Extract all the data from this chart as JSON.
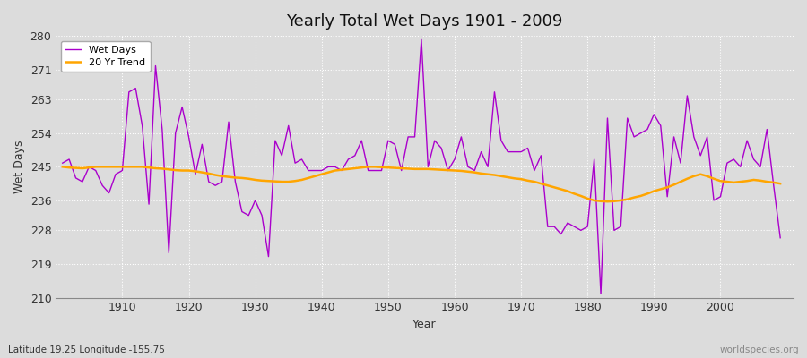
{
  "title": "Yearly Total Wet Days 1901 - 2009",
  "xlabel": "Year",
  "ylabel": "Wet Days",
  "subtitle": "Latitude 19.25 Longitude -155.75",
  "watermark": "worldspecies.org",
  "ylim": [
    210,
    280
  ],
  "yticks": [
    210,
    219,
    228,
    236,
    245,
    254,
    263,
    271,
    280
  ],
  "bg_color": "#dcdcdc",
  "plot_bg_color": "#dcdcdc",
  "wet_days_color": "#aa00cc",
  "trend_color": "#FFA500",
  "years": [
    1901,
    1902,
    1903,
    1904,
    1905,
    1906,
    1907,
    1908,
    1909,
    1910,
    1911,
    1912,
    1913,
    1914,
    1915,
    1916,
    1917,
    1918,
    1919,
    1920,
    1921,
    1922,
    1923,
    1924,
    1925,
    1926,
    1927,
    1928,
    1929,
    1930,
    1931,
    1932,
    1933,
    1934,
    1935,
    1936,
    1937,
    1938,
    1939,
    1940,
    1941,
    1942,
    1943,
    1944,
    1945,
    1946,
    1947,
    1948,
    1949,
    1950,
    1951,
    1952,
    1953,
    1954,
    1955,
    1956,
    1957,
    1958,
    1959,
    1960,
    1961,
    1962,
    1963,
    1964,
    1965,
    1966,
    1967,
    1968,
    1969,
    1970,
    1971,
    1972,
    1973,
    1974,
    1975,
    1976,
    1977,
    1978,
    1979,
    1980,
    1981,
    1982,
    1983,
    1984,
    1985,
    1986,
    1987,
    1988,
    1989,
    1990,
    1991,
    1992,
    1993,
    1994,
    1995,
    1996,
    1997,
    1998,
    1999,
    2000,
    2001,
    2002,
    2003,
    2004,
    2005,
    2006,
    2007,
    2008,
    2009
  ],
  "wet_days": [
    246,
    247,
    242,
    241,
    245,
    244,
    240,
    238,
    243,
    244,
    265,
    266,
    256,
    235,
    272,
    255,
    222,
    254,
    261,
    253,
    243,
    251,
    241,
    240,
    241,
    257,
    241,
    233,
    232,
    236,
    232,
    221,
    252,
    248,
    256,
    246,
    247,
    244,
    244,
    244,
    245,
    245,
    244,
    247,
    248,
    252,
    244,
    244,
    244,
    252,
    251,
    244,
    253,
    253,
    279,
    245,
    252,
    250,
    244,
    247,
    253,
    245,
    244,
    249,
    245,
    265,
    252,
    249,
    249,
    249,
    250,
    244,
    248,
    229,
    229,
    227,
    230,
    229,
    228,
    229,
    247,
    211,
    258,
    228,
    229,
    258,
    253,
    254,
    255,
    259,
    256,
    237,
    253,
    246,
    264,
    253,
    248,
    253,
    236,
    237,
    246,
    247,
    245,
    252,
    247,
    245,
    255,
    240,
    226
  ],
  "trend": [
    245.0,
    244.8,
    244.7,
    244.6,
    244.8,
    245.0,
    245.0,
    245.0,
    245.0,
    245.0,
    245.0,
    245.0,
    245.0,
    244.8,
    244.6,
    244.5,
    244.3,
    244.1,
    244.0,
    244.0,
    243.8,
    243.5,
    243.2,
    242.8,
    242.5,
    242.3,
    242.1,
    242.0,
    241.8,
    241.5,
    241.3,
    241.2,
    241.1,
    241.0,
    241.0,
    241.2,
    241.5,
    242.0,
    242.5,
    243.0,
    243.5,
    244.0,
    244.2,
    244.4,
    244.6,
    244.8,
    245.0,
    245.0,
    244.9,
    244.8,
    244.7,
    244.6,
    244.5,
    244.4,
    244.4,
    244.4,
    244.3,
    244.2,
    244.1,
    244.0,
    243.9,
    243.7,
    243.5,
    243.2,
    243.0,
    242.8,
    242.5,
    242.2,
    241.9,
    241.7,
    241.3,
    241.0,
    240.5,
    240.0,
    239.5,
    239.0,
    238.5,
    237.8,
    237.2,
    236.5,
    236.0,
    235.8,
    235.7,
    235.8,
    236.0,
    236.3,
    236.8,
    237.2,
    237.8,
    238.5,
    239.0,
    239.5,
    240.2,
    241.0,
    241.8,
    242.5,
    243.0,
    242.5,
    241.8,
    241.2,
    241.0,
    240.8,
    241.0,
    241.2,
    241.5,
    241.3,
    241.0,
    240.8,
    240.5
  ]
}
